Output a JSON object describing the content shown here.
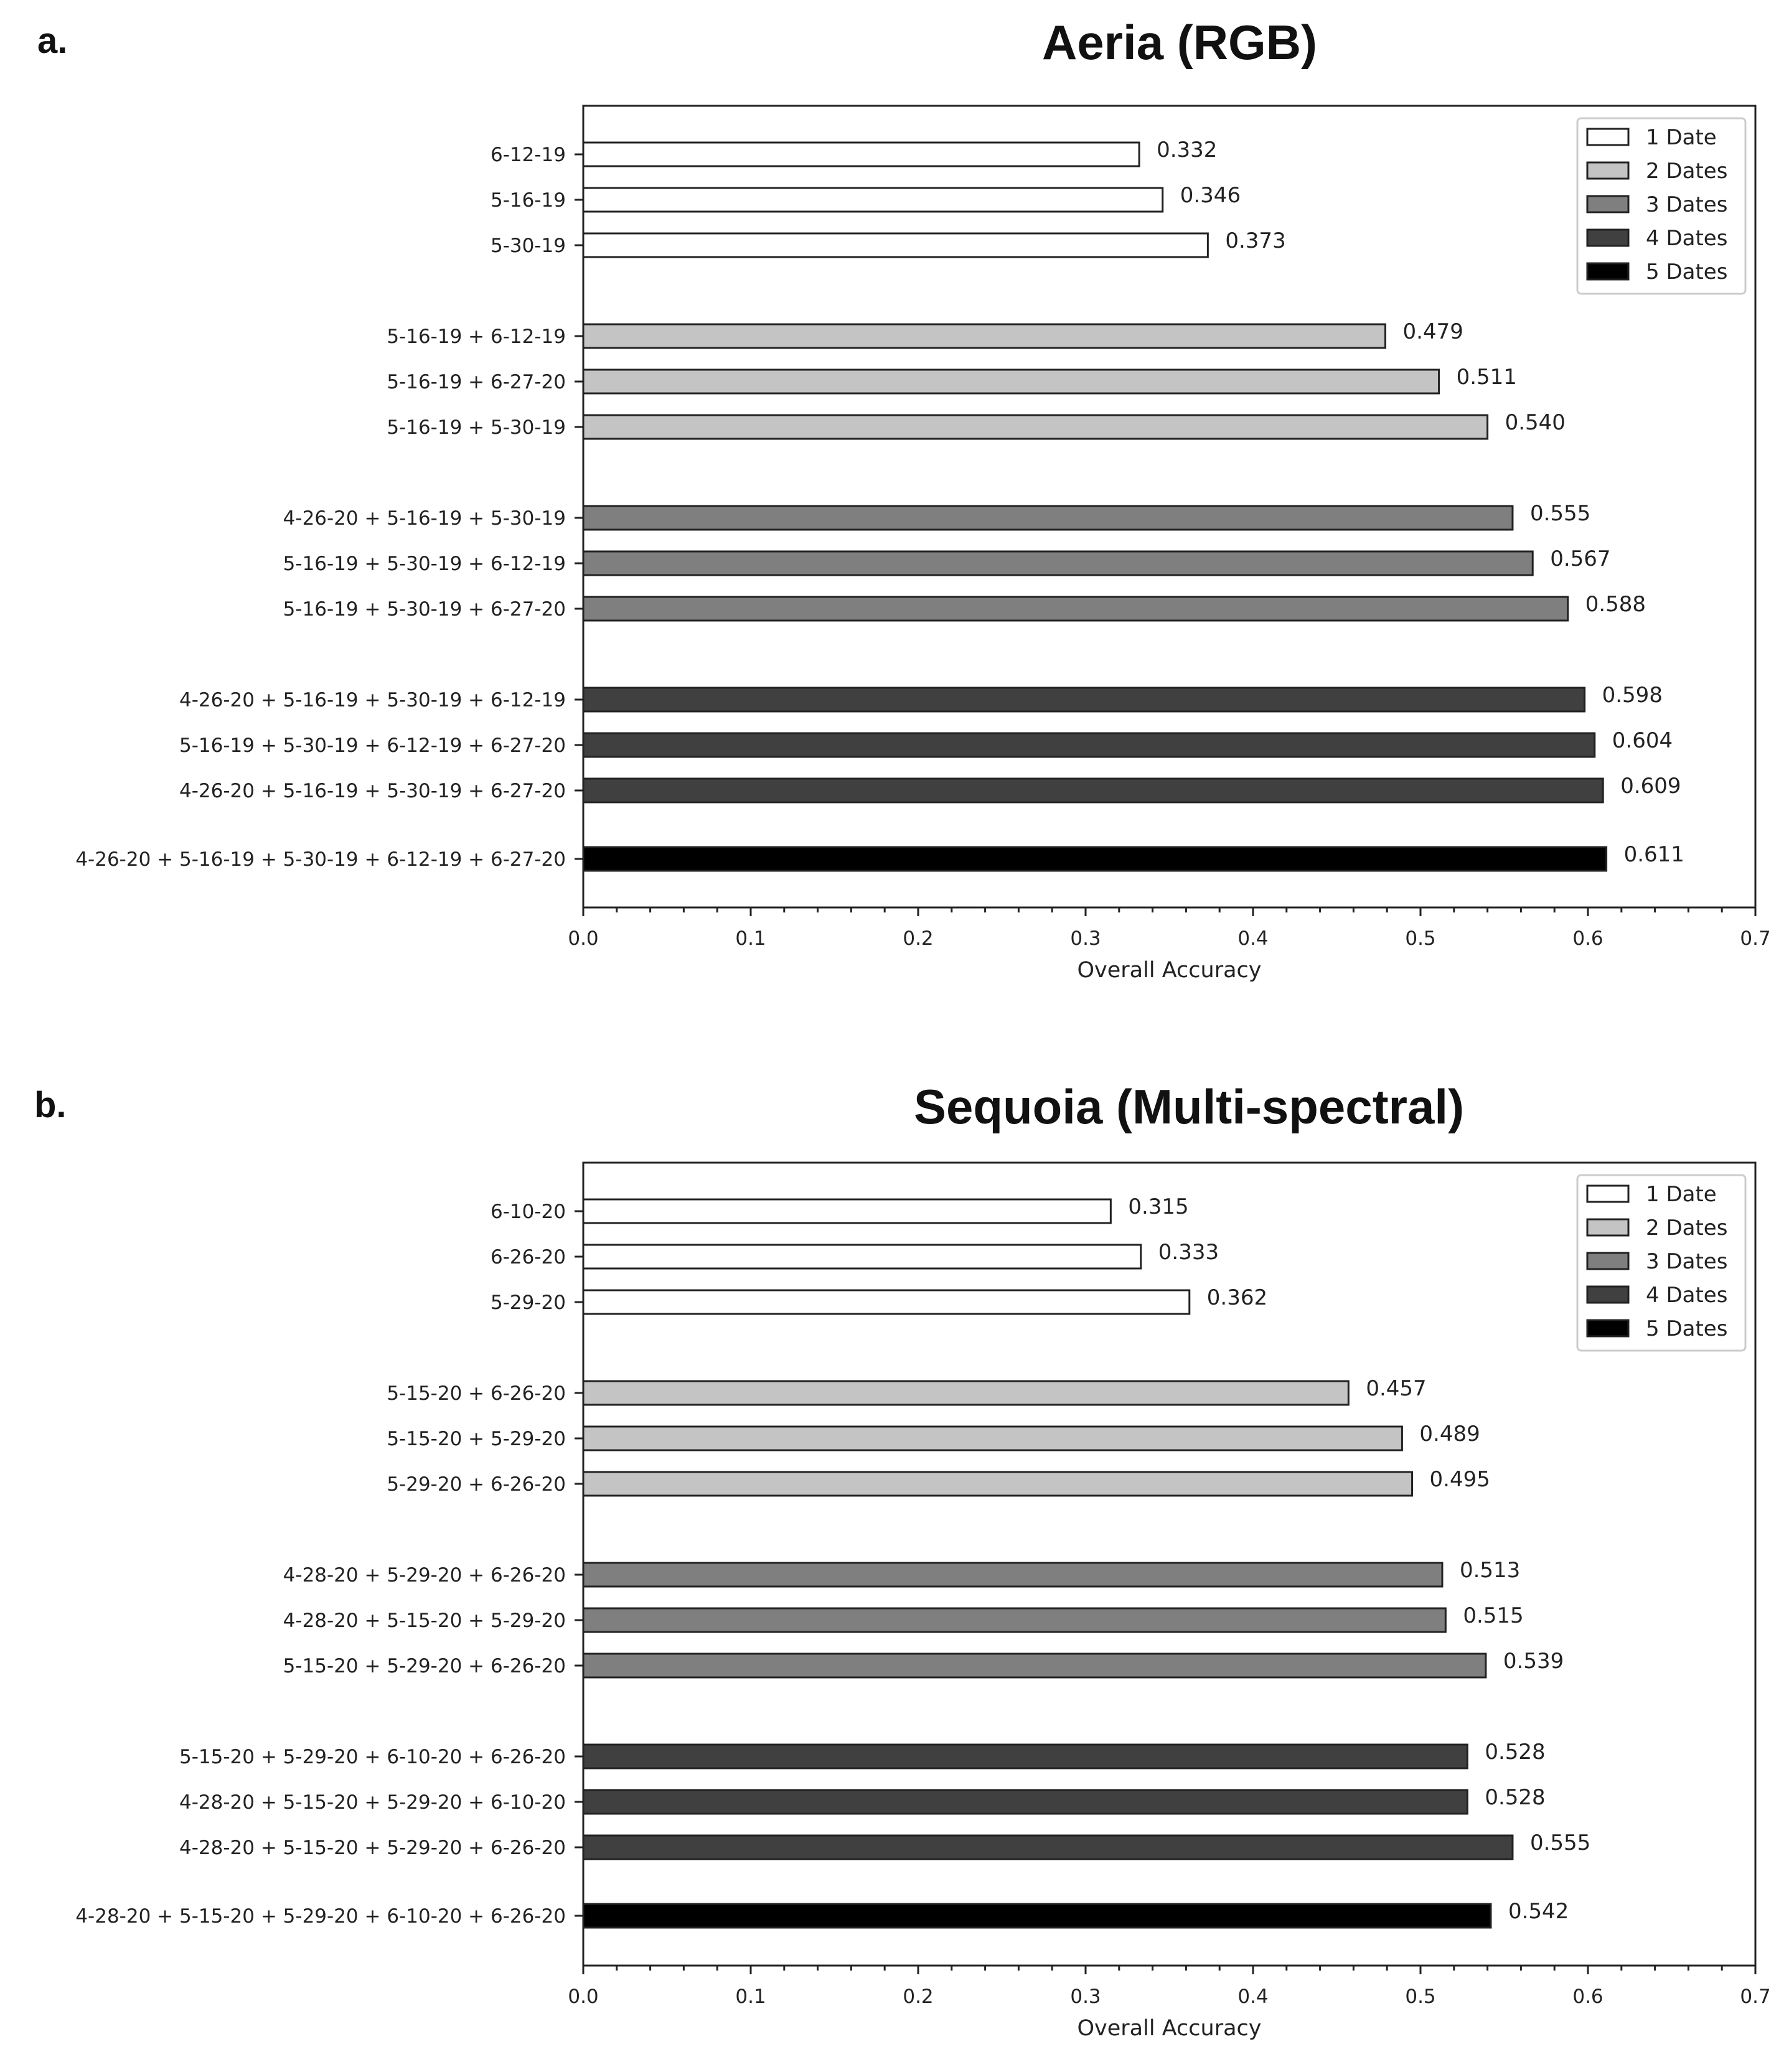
{
  "chart_data": [
    {
      "type": "bar",
      "orientation": "horizontal",
      "panel_label": "a.",
      "title": "Aeria (RGB)",
      "xlabel": "Overall Accuracy",
      "ylabel": "",
      "xlim": [
        0.0,
        0.7
      ],
      "xticks": [
        "0.0",
        "0.1",
        "0.2",
        "0.3",
        "0.4",
        "0.5",
        "0.6",
        "0.7"
      ],
      "legend": {
        "position": "top-right",
        "entries": [
          {
            "label": "1 Date",
            "color": "#ffffff"
          },
          {
            "label": "2 Dates",
            "color": "#c4c4c4"
          },
          {
            "label": "3 Dates",
            "color": "#7f7f7f"
          },
          {
            "label": "4 Dates",
            "color": "#404040"
          },
          {
            "label": "5 Dates",
            "color": "#000000"
          }
        ]
      },
      "bars": [
        {
          "category": "6-12-19",
          "value": 0.332,
          "value_label": "0.332",
          "group": 0
        },
        {
          "category": "5-16-19",
          "value": 0.346,
          "value_label": "0.346",
          "group": 0
        },
        {
          "category": "5-30-19",
          "value": 0.373,
          "value_label": "0.373",
          "group": 0
        },
        {
          "category": "5-16-19 + 6-12-19",
          "value": 0.479,
          "value_label": "0.479",
          "group": 1
        },
        {
          "category": "5-16-19 + 6-27-20",
          "value": 0.511,
          "value_label": "0.511",
          "group": 1
        },
        {
          "category": "5-16-19 + 5-30-19",
          "value": 0.54,
          "value_label": "0.540",
          "group": 1
        },
        {
          "category": "4-26-20 + 5-16-19 + 5-30-19",
          "value": 0.555,
          "value_label": "0.555",
          "group": 2
        },
        {
          "category": "5-16-19 + 5-30-19 + 6-12-19",
          "value": 0.567,
          "value_label": "0.567",
          "group": 2
        },
        {
          "category": "5-16-19 + 5-30-19 + 6-27-20",
          "value": 0.588,
          "value_label": "0.588",
          "group": 2
        },
        {
          "category": "4-26-20 + 5-16-19 + 5-30-19 + 6-12-19",
          "value": 0.598,
          "value_label": "0.598",
          "group": 3
        },
        {
          "category": "5-16-19 + 5-30-19 + 6-12-19 + 6-27-20",
          "value": 0.604,
          "value_label": "0.604",
          "group": 3
        },
        {
          "category": "4-26-20 + 5-16-19 + 5-30-19 + 6-27-20",
          "value": 0.609,
          "value_label": "0.609",
          "group": 3
        },
        {
          "category": "4-26-20 + 5-16-19 + 5-30-19 + 6-12-19 + 6-27-20",
          "value": 0.611,
          "value_label": "0.611",
          "group": 4
        }
      ]
    },
    {
      "type": "bar",
      "orientation": "horizontal",
      "panel_label": "b.",
      "title": "Sequoia (Multi-spectral)",
      "xlabel": "Overall Accuracy",
      "ylabel": "",
      "xlim": [
        0.0,
        0.7
      ],
      "xticks": [
        "0.0",
        "0.1",
        "0.2",
        "0.3",
        "0.4",
        "0.5",
        "0.6",
        "0.7"
      ],
      "legend": {
        "position": "top-right",
        "entries": [
          {
            "label": "1 Date",
            "color": "#ffffff"
          },
          {
            "label": "2 Dates",
            "color": "#c4c4c4"
          },
          {
            "label": "3 Dates",
            "color": "#7f7f7f"
          },
          {
            "label": "4 Dates",
            "color": "#404040"
          },
          {
            "label": "5 Dates",
            "color": "#000000"
          }
        ]
      },
      "bars": [
        {
          "category": "6-10-20",
          "value": 0.315,
          "value_label": "0.315",
          "group": 0
        },
        {
          "category": "6-26-20",
          "value": 0.333,
          "value_label": "0.333",
          "group": 0
        },
        {
          "category": "5-29-20",
          "value": 0.362,
          "value_label": "0.362",
          "group": 0
        },
        {
          "category": "5-15-20 + 6-26-20",
          "value": 0.457,
          "value_label": "0.457",
          "group": 1
        },
        {
          "category": "5-15-20 + 5-29-20",
          "value": 0.489,
          "value_label": "0.489",
          "group": 1
        },
        {
          "category": "5-29-20 + 6-26-20",
          "value": 0.495,
          "value_label": "0.495",
          "group": 1
        },
        {
          "category": "4-28-20 + 5-29-20 + 6-26-20",
          "value": 0.513,
          "value_label": "0.513",
          "group": 2
        },
        {
          "category": "4-28-20 + 5-15-20 + 5-29-20",
          "value": 0.515,
          "value_label": "0.515",
          "group": 2
        },
        {
          "category": "5-15-20 + 5-29-20 + 6-26-20",
          "value": 0.539,
          "value_label": "0.539",
          "group": 2
        },
        {
          "category": "5-15-20 + 5-29-20 + 6-10-20 + 6-26-20",
          "value": 0.528,
          "value_label": "0.528",
          "group": 3
        },
        {
          "category": "4-28-20 + 5-15-20 + 5-29-20 + 6-10-20",
          "value": 0.528,
          "value_label": "0.528",
          "group": 3
        },
        {
          "category": "4-28-20 + 5-15-20 + 5-29-20 + 6-26-20",
          "value": 0.555,
          "value_label": "0.555",
          "group": 3
        },
        {
          "category": "4-28-20 + 5-15-20 + 5-29-20 + 6-10-20 + 6-26-20",
          "value": 0.542,
          "value_label": "0.542",
          "group": 4
        }
      ]
    }
  ]
}
